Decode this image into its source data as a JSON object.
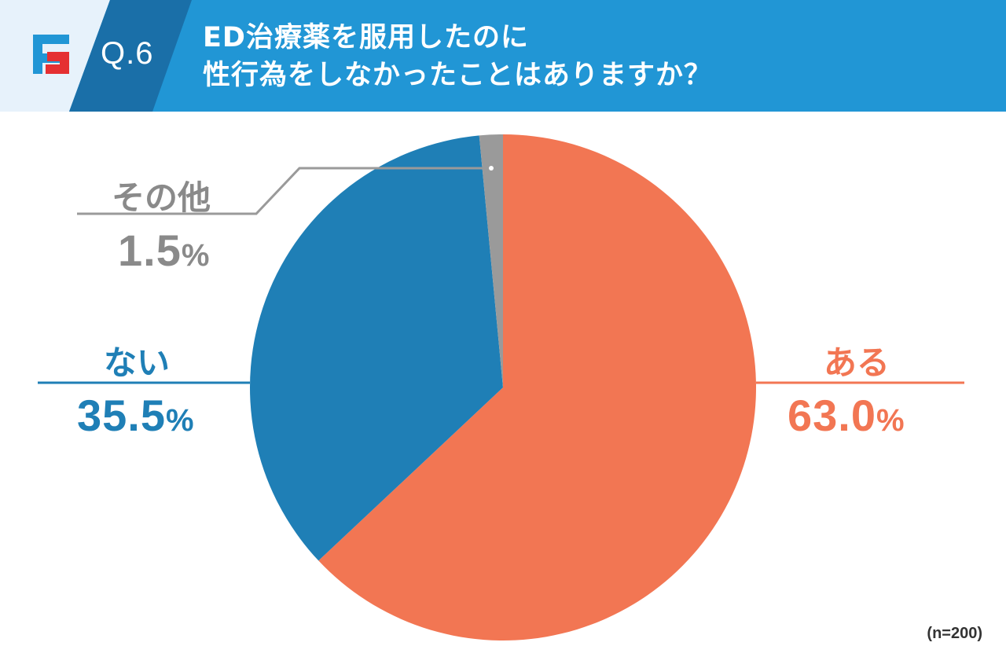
{
  "header": {
    "question": "Q.6",
    "title_line1": "ED治療薬を服用したのに",
    "title_line2": "性行為をしなかったことはありますか？",
    "logo_icon": "brand-f-logo-icon",
    "colors": {
      "bar": "#2196d5",
      "badge": "#1a6fa8",
      "background": "#e7f2fb"
    }
  },
  "chart_data": {
    "type": "pie",
    "slices": [
      {
        "label": "ある",
        "value": 63.0,
        "value_label": "63.0",
        "color": "#f27653"
      },
      {
        "label": "ない",
        "value": 35.5,
        "value_label": "35.5",
        "color": "#1f7fb6"
      },
      {
        "label": "その他",
        "value": 1.5,
        "value_label": "1.5",
        "color": "#9a9a9a"
      }
    ],
    "unit": "%",
    "start": "12 o'clock",
    "direction": "clockwise",
    "legend": "none",
    "note": "(n=200)"
  }
}
